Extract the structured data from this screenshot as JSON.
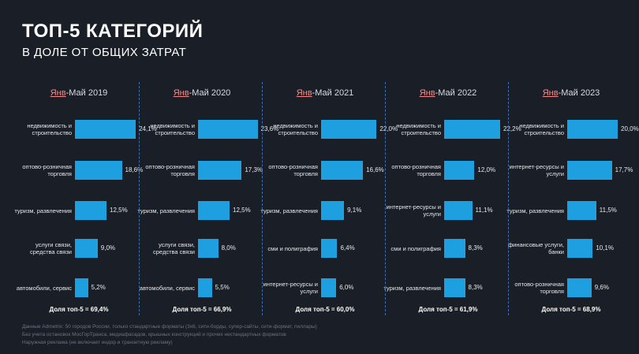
{
  "title": "ТОП-5 КАТЕГОРИЙ",
  "subtitle": "В ДОЛЕ ОТ ОБЩИХ ЗАТРАТ",
  "chart_data": [
    {
      "type": "bar",
      "title_prefix": "Янв",
      "title_suffix": "-Май 2019",
      "categories": [
        "недвижимость и строительство",
        "оптово-розничная торговля",
        "туризм, развлечения",
        "услуги связи, средства связи",
        "автомобили, сервис"
      ],
      "values": [
        24.1,
        18.6,
        12.5,
        9.0,
        5.2
      ],
      "labels": [
        "24,1%",
        "18,6%",
        "12,5%",
        "9,0%",
        "5,2%"
      ],
      "share": "Доля топ-5 = 69,4%"
    },
    {
      "type": "bar",
      "title_prefix": "Янв",
      "title_suffix": "-Май 2020",
      "categories": [
        "недвижимость и строительство",
        "оптово-розничная торговля",
        "туризм, развлечения",
        "услуги связи, средства связи",
        "автомобили, сервис"
      ],
      "values": [
        23.6,
        17.3,
        12.5,
        8.0,
        5.5
      ],
      "labels": [
        "23,6%",
        "17,3%",
        "12,5%",
        "8,0%",
        "5,5%"
      ],
      "share": "Доля топ-5 = 66,9%"
    },
    {
      "type": "bar",
      "title_prefix": "Янв",
      "title_suffix": "-Май 2021",
      "categories": [
        "недвижимость и строительство",
        "оптово-розничная торговля",
        "туризм, развлечения",
        "сми и полиграфия",
        "интернет-ресурсы и услуги"
      ],
      "values": [
        22.0,
        16.6,
        9.1,
        6.4,
        6.0
      ],
      "labels": [
        "22,0%",
        "16,6%",
        "9,1%",
        "6,4%",
        "6,0%"
      ],
      "share": "Доля топ-5 = 60,0%"
    },
    {
      "type": "bar",
      "title_prefix": "Янв",
      "title_suffix": "-Май 2022",
      "categories": [
        "недвижимость и строительство",
        "оптово-розничная торговля",
        "интернет-ресурсы и услуги",
        "сми и полиграфия",
        "туризм, развлечения"
      ],
      "values": [
        22.2,
        12.0,
        11.1,
        8.3,
        8.3
      ],
      "labels": [
        "22,2%",
        "12,0%",
        "11,1%",
        "8,3%",
        "8,3%"
      ],
      "share": "Доля топ-5 = 61,9%"
    },
    {
      "type": "bar",
      "title_prefix": "Янв",
      "title_suffix": "-Май 2023",
      "categories": [
        "недвижимость и строительство",
        "интернет-ресурсы и услуги",
        "туризм, развлечения",
        "финансовые услуги, банки",
        "оптово-розничная торговля"
      ],
      "values": [
        20.0,
        17.7,
        11.5,
        10.1,
        9.6
      ],
      "labels": [
        "20,0%",
        "17,7%",
        "11,5%",
        "10,1%",
        "9,6%"
      ],
      "share": "Доля топ-5 = 68,9%"
    }
  ],
  "footnote": [
    "Данные Admetrix: 50 городов России, только стандартные форматы (3х6, сити-борды, супер-сайты, сити-формат, пиллары)",
    "Без учета остановок МосГорТранса, медиафасадов, крышных конструкций и прочих нестандартных форматов",
    "Наружная реклама (не включает индор и транзитную рекламу)"
  ],
  "colors": {
    "background": "#1a1e26",
    "bar": "#1d9fe0",
    "accent": "#f28c8c",
    "divider": "#3f6fb0"
  }
}
